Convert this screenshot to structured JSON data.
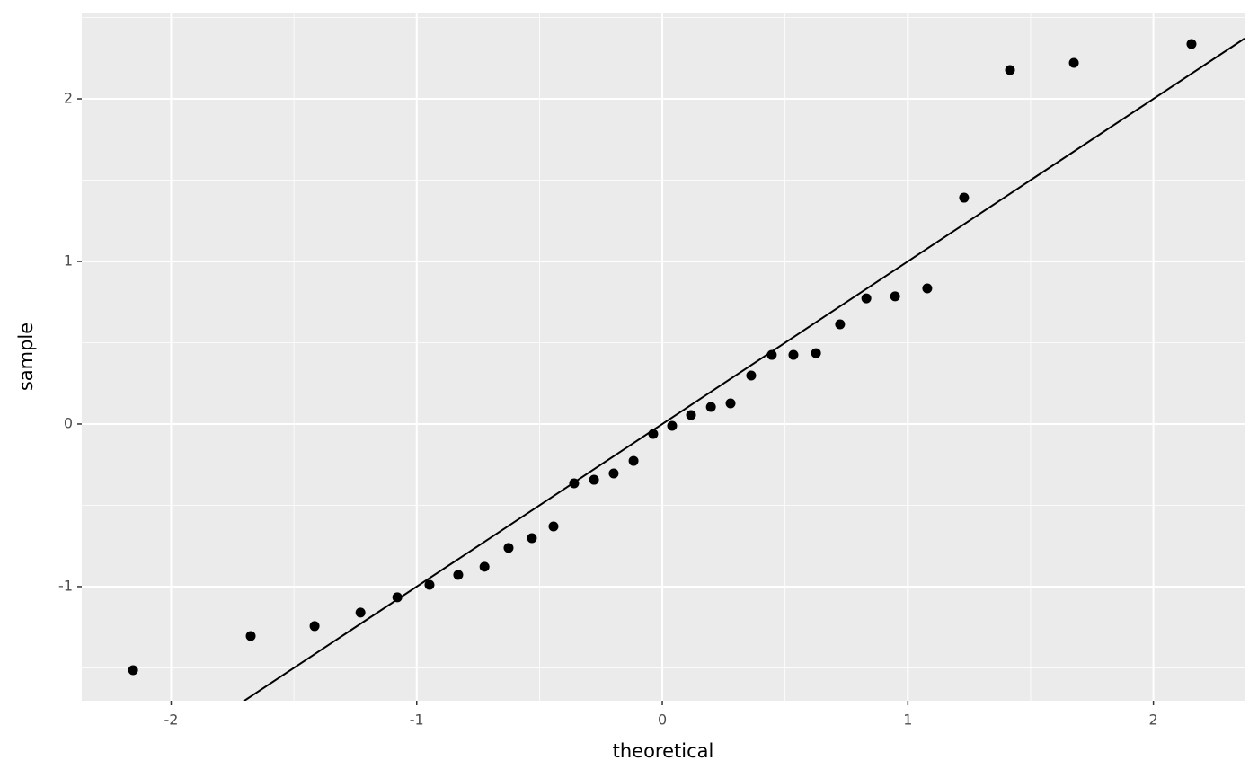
{
  "chart_data": {
    "type": "scatter",
    "x_label": "theoretical",
    "y_label": "sample",
    "x": [
      -2.155,
      -1.676,
      -1.416,
      -1.229,
      -1.079,
      -0.948,
      -0.831,
      -0.724,
      -0.626,
      -0.531,
      -0.443,
      -0.359,
      -0.278,
      -0.198,
      -0.117,
      -0.037,
      0.04,
      0.117,
      0.198,
      0.278,
      0.362,
      0.446,
      0.534,
      0.626,
      0.724,
      0.831,
      0.948,
      1.079,
      1.229,
      1.416,
      1.676,
      2.155
    ],
    "values": [
      -1.514,
      -1.304,
      -1.243,
      -1.16,
      -1.066,
      -0.989,
      -0.928,
      -0.878,
      -0.762,
      -0.702,
      -0.63,
      -0.365,
      -0.343,
      -0.304,
      -0.227,
      -0.061,
      -0.011,
      0.055,
      0.105,
      0.127,
      0.298,
      0.425,
      0.425,
      0.436,
      0.613,
      0.773,
      0.785,
      0.834,
      1.392,
      2.177,
      2.221,
      2.337
    ],
    "color": "#000000",
    "reference_line": {
      "slope": 1,
      "intercept": 0,
      "color": "#000000"
    },
    "xlim": [
      -2.364,
      2.371
    ],
    "ylim": [
      -1.702,
      2.525
    ],
    "xticks": [
      -2,
      -1,
      0,
      1,
      2
    ],
    "yticks": [
      -1,
      0,
      1,
      2
    ],
    "xminor": [
      -1.5,
      -0.5,
      0.5,
      1.5
    ],
    "yminor": [
      -1.5,
      -0.5,
      0.5,
      1.5,
      2.5
    ],
    "grid": true
  }
}
